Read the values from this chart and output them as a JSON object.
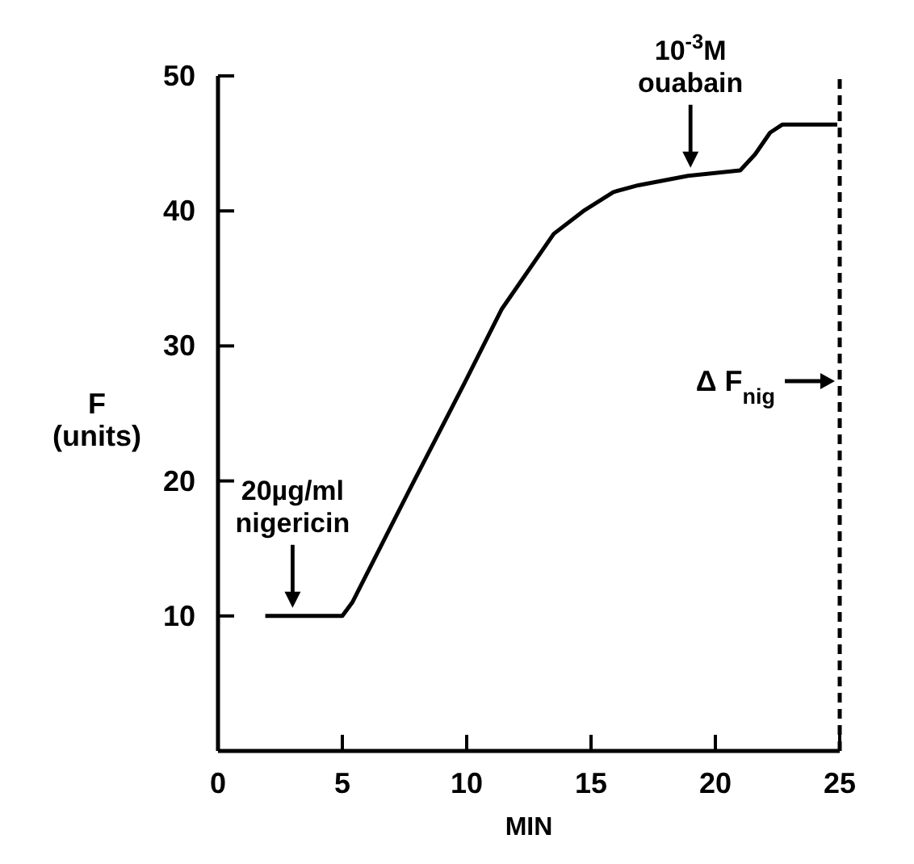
{
  "chart_data": {
    "type": "line",
    "xlabel": "MIN",
    "ylabel": "F\n(units)",
    "xlim": [
      0,
      25
    ],
    "xticks": [
      0,
      5,
      10,
      15,
      20,
      25
    ],
    "ylim": [
      0,
      50
    ],
    "yticks": [
      10,
      20,
      30,
      40,
      50
    ],
    "series": [
      {
        "color": "#000000",
        "x": [
          1.9,
          5.0,
          5.4,
          7.8,
          9.9,
          11.4,
          13.5,
          14.7,
          15.9,
          16.9,
          18.9,
          21.0,
          21.6,
          22.2,
          22.7,
          24.9
        ],
        "values": [
          10,
          10,
          11.0,
          19.7,
          27.2,
          32.7,
          38.3,
          40.0,
          41.4,
          41.9,
          42.6,
          43.0,
          44.2,
          45.8,
          46.4,
          46.4
        ]
      }
    ],
    "ref_lines": [
      {
        "axis": "x",
        "value": 25,
        "label": "Δ F$_{nig}$",
        "line_style": "dashed",
        "color": "#000000"
      }
    ],
    "grid": false,
    "marker": "none",
    "line_style": "solid",
    "annotations": [
      {
        "text": "20µg/ml\nnigericin",
        "x": 3,
        "y": 10
      },
      {
        "text": "10$^{-3}$M\nouabain",
        "x": 19,
        "y": 42.6
      }
    ]
  }
}
